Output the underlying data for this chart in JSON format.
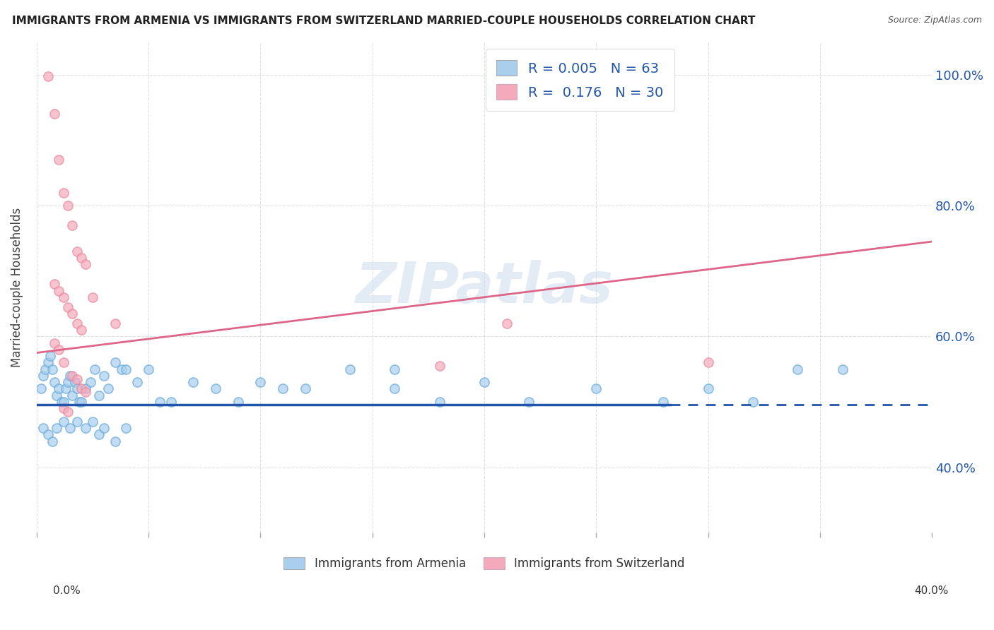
{
  "title": "IMMIGRANTS FROM ARMENIA VS IMMIGRANTS FROM SWITZERLAND MARRIED-COUPLE HOUSEHOLDS CORRELATION CHART",
  "source": "Source: ZipAtlas.com",
  "ylabel": "Married-couple Households",
  "ylabel_tick_vals": [
    0.4,
    0.6,
    0.8,
    1.0
  ],
  "ylabel_tick_labels": [
    "40.0%",
    "60.0%",
    "80.0%",
    "100.0%"
  ],
  "xlim": [
    0.0,
    0.4
  ],
  "ylim": [
    0.3,
    1.05
  ],
  "legend_blue_r": "0.005",
  "legend_blue_n": "63",
  "legend_pink_r": "0.176",
  "legend_pink_n": "30",
  "watermark": "ZIPatlas",
  "blue_color": "#A8CFEE",
  "pink_color": "#F4AABB",
  "blue_edge_color": "#6AAAD8",
  "pink_edge_color": "#E88AA0",
  "blue_line_color": "#2255AA",
  "pink_line_color": "#DD6688",
  "blue_scatter_x": [
    0.002,
    0.003,
    0.004,
    0.005,
    0.006,
    0.007,
    0.008,
    0.009,
    0.01,
    0.011,
    0.012,
    0.013,
    0.014,
    0.015,
    0.016,
    0.017,
    0.018,
    0.019,
    0.02,
    0.022,
    0.024,
    0.026,
    0.028,
    0.03,
    0.032,
    0.035,
    0.038,
    0.04,
    0.045,
    0.05,
    0.055,
    0.06,
    0.07,
    0.08,
    0.09,
    0.1,
    0.11,
    0.12,
    0.14,
    0.16,
    0.18,
    0.2,
    0.22,
    0.25,
    0.28,
    0.3,
    0.32,
    0.34,
    0.36,
    0.003,
    0.005,
    0.007,
    0.009,
    0.012,
    0.015,
    0.018,
    0.022,
    0.025,
    0.028,
    0.03,
    0.035,
    0.04,
    0.16
  ],
  "blue_scatter_y": [
    0.52,
    0.54,
    0.55,
    0.56,
    0.57,
    0.55,
    0.53,
    0.51,
    0.52,
    0.5,
    0.5,
    0.52,
    0.53,
    0.54,
    0.51,
    0.53,
    0.52,
    0.5,
    0.5,
    0.52,
    0.53,
    0.55,
    0.51,
    0.54,
    0.52,
    0.56,
    0.55,
    0.55,
    0.53,
    0.55,
    0.5,
    0.5,
    0.53,
    0.52,
    0.5,
    0.53,
    0.52,
    0.52,
    0.55,
    0.52,
    0.5,
    0.53,
    0.5,
    0.52,
    0.5,
    0.52,
    0.5,
    0.55,
    0.55,
    0.46,
    0.45,
    0.44,
    0.46,
    0.47,
    0.46,
    0.47,
    0.46,
    0.47,
    0.45,
    0.46,
    0.44,
    0.46,
    0.55
  ],
  "pink_scatter_x": [
    0.005,
    0.008,
    0.01,
    0.012,
    0.014,
    0.016,
    0.018,
    0.02,
    0.022,
    0.008,
    0.01,
    0.012,
    0.014,
    0.016,
    0.018,
    0.02,
    0.008,
    0.01,
    0.012,
    0.016,
    0.018,
    0.02,
    0.022,
    0.012,
    0.014,
    0.025,
    0.035,
    0.21,
    0.3,
    0.18
  ],
  "pink_scatter_y": [
    0.998,
    0.94,
    0.87,
    0.82,
    0.8,
    0.77,
    0.73,
    0.72,
    0.71,
    0.68,
    0.67,
    0.66,
    0.645,
    0.635,
    0.62,
    0.61,
    0.59,
    0.58,
    0.56,
    0.54,
    0.535,
    0.52,
    0.515,
    0.49,
    0.485,
    0.66,
    0.62,
    0.62,
    0.56,
    0.555
  ],
  "blue_trend_x": [
    0.0,
    0.283,
    0.283,
    0.4
  ],
  "blue_trend_y": [
    0.496,
    0.496,
    0.496,
    0.496
  ],
  "blue_trend_solid_end": 0.283,
  "pink_trend_x": [
    0.0,
    0.4
  ],
  "pink_trend_y": [
    0.575,
    0.745
  ],
  "grid_color": "#CCCCCC",
  "background_color": "#FFFFFF",
  "legend_r_color": "#2255AA",
  "legend_n_color": "#2255AA"
}
